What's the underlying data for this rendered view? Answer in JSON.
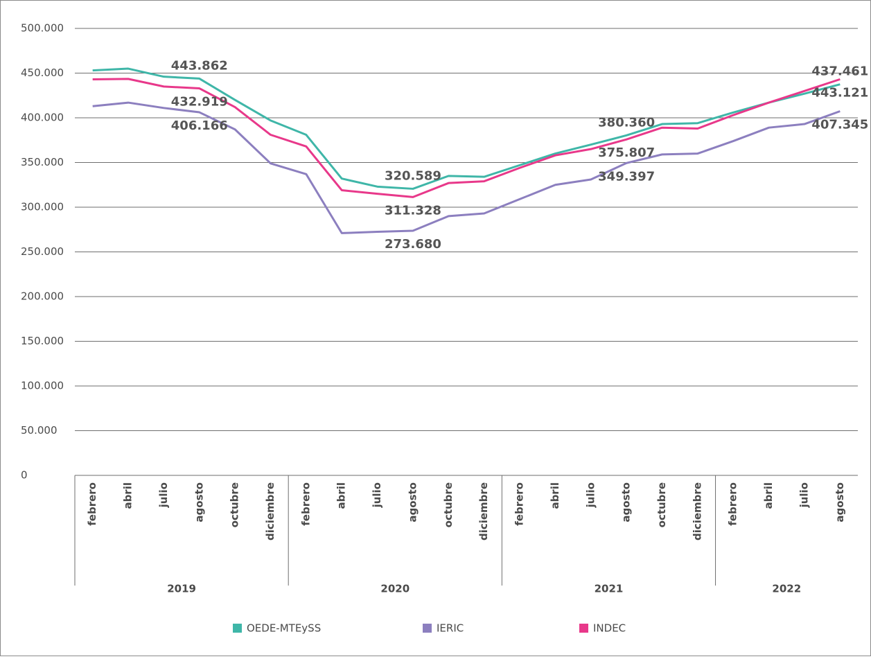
{
  "chart_data": {
    "type": "line",
    "groups": [
      {
        "label": "2019",
        "categories": [
          "febrero",
          "abril",
          "julio",
          "agosto",
          "octubre",
          "diciembre"
        ]
      },
      {
        "label": "2020",
        "categories": [
          "febrero",
          "abril",
          "julio",
          "agosto",
          "octubre",
          "diciembre"
        ]
      },
      {
        "label": "2021",
        "categories": [
          "febrero",
          "abril",
          "julio",
          "agosto",
          "octubre",
          "diciembre"
        ]
      },
      {
        "label": "2022",
        "categories": [
          "febrero",
          "abril",
          "julio",
          "agosto"
        ]
      }
    ],
    "series": [
      {
        "name": "OEDE-MTEySS",
        "color": "#3fb6a8",
        "values": [
          453000,
          455000,
          446000,
          443862,
          420000,
          397000,
          381000,
          332000,
          323000,
          320589,
          335000,
          334000,
          347000,
          360000,
          370000,
          380360,
          393000,
          394000,
          406000,
          417000,
          427000,
          437461
        ],
        "value_labels": [
          null,
          null,
          null,
          "443.862",
          null,
          null,
          null,
          null,
          null,
          "320.589",
          null,
          null,
          null,
          null,
          null,
          "380.360",
          null,
          null,
          null,
          null,
          null,
          "437.461"
        ]
      },
      {
        "name": "IERIC",
        "color": "#8c7fbf",
        "values": [
          413000,
          417000,
          411000,
          406166,
          387000,
          349000,
          337000,
          271000,
          272500,
          273680,
          290000,
          293000,
          309000,
          325000,
          331000,
          349397,
          359000,
          360000,
          374000,
          389000,
          393000,
          407345
        ],
        "value_labels": [
          null,
          null,
          null,
          "406.166",
          null,
          null,
          null,
          null,
          null,
          "273.680",
          null,
          null,
          null,
          null,
          null,
          "349.397",
          null,
          null,
          null,
          null,
          null,
          "407.345"
        ]
      },
      {
        "name": "INDEC",
        "color": "#e8388a",
        "values": [
          443000,
          443500,
          435000,
          432919,
          412000,
          381000,
          368000,
          319000,
          315000,
          311328,
          327000,
          329000,
          344000,
          358000,
          365000,
          375807,
          389000,
          388000,
          403000,
          417000,
          430000,
          443121
        ],
        "value_labels": [
          null,
          null,
          null,
          "432.919",
          null,
          null,
          null,
          null,
          null,
          "311.328",
          null,
          null,
          null,
          null,
          null,
          "375.807",
          null,
          null,
          null,
          null,
          null,
          "443.121"
        ]
      }
    ],
    "ylim": [
      0,
      500000
    ],
    "yticks": [
      0,
      {
        "value": 50000,
        "label": "50.000"
      },
      {
        "value": 100000,
        "label": "100.000"
      },
      {
        "value": 150000,
        "label": "150.000"
      },
      {
        "value": 200000,
        "label": "200.000"
      },
      {
        "value": 250000,
        "label": "250.000"
      },
      {
        "value": 300000,
        "label": "300.000"
      },
      {
        "value": 350000,
        "label": "350.000"
      },
      {
        "value": 400000,
        "label": "400.000"
      },
      {
        "value": 450000,
        "label": "450.000"
      },
      {
        "value": 500000,
        "label": "500.000"
      }
    ],
    "grid": true,
    "legend": "bottom"
  }
}
